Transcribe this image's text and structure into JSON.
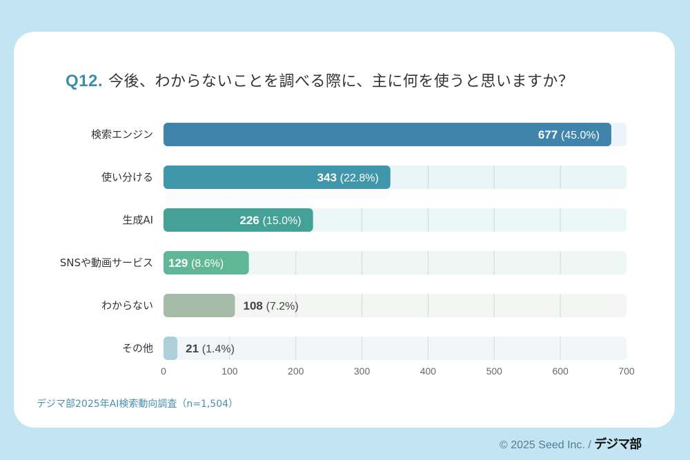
{
  "title": {
    "question_number": "Q12.",
    "question_text": "今後、わからないことを調べる際に、主に何を使うと思いますか？"
  },
  "source_note": "デジマ部2025年AI検索動向調査（n=1,504）",
  "footer": {
    "copyright": "© 2025 Seed Inc. /",
    "brand": "デジマ部"
  },
  "chart_data": {
    "type": "bar",
    "orientation": "horizontal",
    "title": "Q12. 今後、わからないことを調べる際に、主に何を使うと思いますか？",
    "xlabel": "",
    "ylabel": "",
    "xlim": [
      0,
      700
    ],
    "xticks": [
      0,
      100,
      200,
      300,
      400,
      500,
      600,
      700
    ],
    "grid": true,
    "categories": [
      "検索エンジン",
      "使い分ける",
      "生成AI",
      "SNSや動画サービス",
      "わからない",
      "その他"
    ],
    "values": [
      677,
      343,
      226,
      129,
      108,
      21
    ],
    "percentages": [
      "45.0%",
      "22.8%",
      "15.0%",
      "8.6%",
      "7.2%",
      "1.4%"
    ],
    "value_labels": [
      "677",
      "343",
      "226",
      "129",
      "108",
      "21"
    ],
    "pct_labels": [
      "(45.0%)",
      "(22.8%)",
      "(15.0%)",
      "(8.6%)",
      "(7.2%)",
      "(1.4%)"
    ],
    "colors": [
      "#3b80a8",
      "#3a93a8",
      "#3e9e94",
      "#5bb595",
      "#a3b9a5",
      "#a9cdd9"
    ],
    "track_colors": [
      "#eaf4f9",
      "#eaf5f8",
      "#ebf6f6",
      "#eef7f4",
      "#f3f6f3",
      "#f2f6f9"
    ],
    "label_inside": [
      true,
      true,
      true,
      true,
      false,
      false
    ],
    "n": 1504
  }
}
